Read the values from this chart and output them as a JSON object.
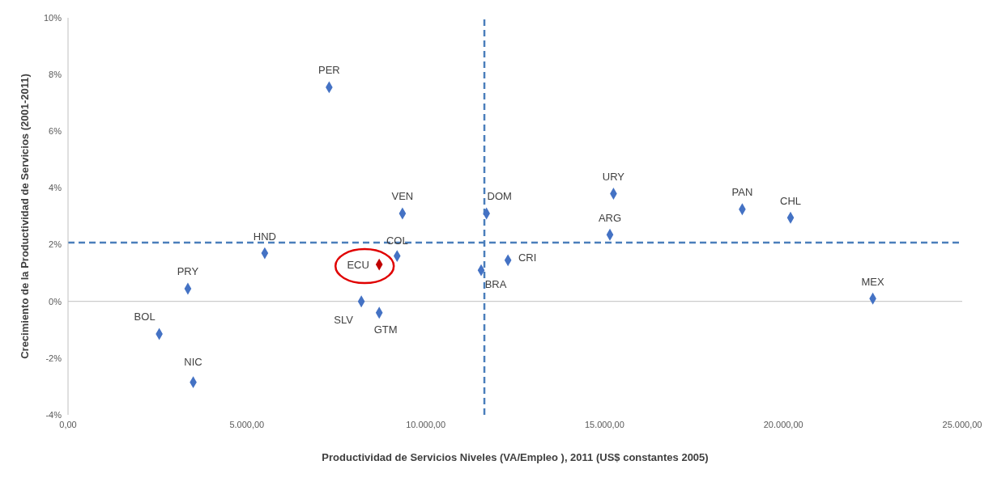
{
  "chart_data": {
    "type": "scatter",
    "xlabel": "Productividad de Servicios Niveles (VA/Empleo ), 2011 (US$ constantes 2005)",
    "ylabel": "Crecimiento de la Productividad de Servicios (2001-2011)",
    "marker": "diamond",
    "grid": false,
    "legend": false,
    "xlim": [
      0,
      25000
    ],
    "xticks": [
      {
        "value": 0,
        "label": "0,00"
      },
      {
        "value": 5000,
        "label": "5.000,00"
      },
      {
        "value": 10000,
        "label": "10.000,00"
      },
      {
        "value": 15000,
        "label": "15.000,00"
      },
      {
        "value": 20000,
        "label": "20.000,00"
      },
      {
        "value": 25000,
        "label": "25.000,00"
      }
    ],
    "ylim": [
      -4,
      10
    ],
    "yticks": [
      {
        "value": -4,
        "label": "-4%"
      },
      {
        "value": -2,
        "label": "-2%"
      },
      {
        "value": 0,
        "label": "0%"
      },
      {
        "value": 2,
        "label": "2%"
      },
      {
        "value": 4,
        "label": "4%"
      },
      {
        "value": 6,
        "label": "6%"
      },
      {
        "value": 8,
        "label": "8%"
      },
      {
        "value": 10,
        "label": "10%"
      }
    ],
    "ref_lines": [
      {
        "axis": "x",
        "value": 11640,
        "color": "#4a7ebb",
        "line_style": "dashed"
      },
      {
        "axis": "y",
        "value": 2.07,
        "color": "#4a7ebb",
        "line_style": "dashed"
      },
      {
        "axis": "y",
        "value": 0,
        "color": "#bfbfbf",
        "line_style": "solid"
      }
    ],
    "series": [
      {
        "name": "PER",
        "color": "#4472c4",
        "x": [
          7300
        ],
        "values": [
          7.55
        ]
      },
      {
        "name": "VEN",
        "color": "#4472c4",
        "x": [
          9350
        ],
        "values": [
          3.1
        ]
      },
      {
        "name": "DOM",
        "color": "#4472c4",
        "x": [
          11700
        ],
        "values": [
          3.1
        ]
      },
      {
        "name": "URY",
        "color": "#4472c4",
        "x": [
          15250
        ],
        "values": [
          3.8
        ]
      },
      {
        "name": "ARG",
        "color": "#4472c4",
        "x": [
          15150
        ],
        "values": [
          2.35
        ]
      },
      {
        "name": "PAN",
        "color": "#4472c4",
        "x": [
          18850
        ],
        "values": [
          3.25
        ]
      },
      {
        "name": "CHL",
        "color": "#4472c4",
        "x": [
          20200
        ],
        "values": [
          2.95
        ]
      },
      {
        "name": "HND",
        "color": "#4472c4",
        "x": [
          5500
        ],
        "values": [
          1.7
        ]
      },
      {
        "name": "COL",
        "color": "#4472c4",
        "x": [
          9200
        ],
        "values": [
          1.6
        ]
      },
      {
        "name": "ECU",
        "color": "#c00000",
        "x": [
          8700
        ],
        "values": [
          1.3
        ]
      },
      {
        "name": "CRI",
        "color": "#4472c4",
        "x": [
          12300
        ],
        "values": [
          1.45
        ]
      },
      {
        "name": "BRA",
        "color": "#4472c4",
        "x": [
          11550
        ],
        "values": [
          1.1
        ]
      },
      {
        "name": "MEX",
        "color": "#4472c4",
        "x": [
          22500
        ],
        "values": [
          0.1
        ]
      },
      {
        "name": "PRY",
        "color": "#4472c4",
        "x": [
          3350
        ],
        "values": [
          0.45
        ]
      },
      {
        "name": "SLV",
        "color": "#4472c4",
        "x": [
          8200
        ],
        "values": [
          0
        ]
      },
      {
        "name": "GTM",
        "color": "#4472c4",
        "x": [
          8700
        ],
        "values": [
          -0.4
        ]
      },
      {
        "name": "BOL",
        "color": "#4472c4",
        "x": [
          2550
        ],
        "values": [
          -1.15
        ]
      },
      {
        "name": "NIC",
        "color": "#4472c4",
        "x": [
          3500
        ],
        "values": [
          -2.85
        ]
      }
    ]
  }
}
